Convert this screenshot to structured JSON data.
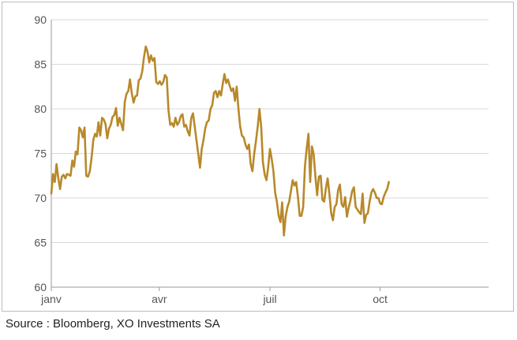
{
  "source_note": "Source : Bloomberg, XO Investments SA",
  "colors": {
    "line": "#B8892A",
    "grid": "#d9d9d9",
    "axis": "#9a9a9a",
    "frame": "#bdbdbd"
  },
  "chart_data": {
    "type": "line",
    "title": "",
    "xlabel": "",
    "ylabel": "",
    "ylim": [
      60,
      90
    ],
    "yticks": [
      60,
      65,
      70,
      75,
      80,
      85,
      90
    ],
    "xlim": [
      0,
      1
    ],
    "xticks": [
      {
        "label": "janv",
        "pos": 0.0
      },
      {
        "label": "avr",
        "pos": 0.247
      },
      {
        "label": "juil",
        "pos": 0.5
      },
      {
        "label": "oct",
        "pos": 0.752
      }
    ],
    "grid": "horizontal",
    "legend": "none",
    "series": [
      {
        "values": [
          [
            0.0,
            70.5
          ],
          [
            0.004,
            72.7
          ],
          [
            0.008,
            71.8
          ],
          [
            0.012,
            73.8
          ],
          [
            0.016,
            72.2
          ],
          [
            0.02,
            71.0
          ],
          [
            0.024,
            72.4
          ],
          [
            0.028,
            72.6
          ],
          [
            0.032,
            72.2
          ],
          [
            0.036,
            72.7
          ],
          [
            0.04,
            72.6
          ],
          [
            0.044,
            72.5
          ],
          [
            0.048,
            74.2
          ],
          [
            0.052,
            73.5
          ],
          [
            0.056,
            75.2
          ],
          [
            0.06,
            74.9
          ],
          [
            0.064,
            77.9
          ],
          [
            0.068,
            77.6
          ],
          [
            0.072,
            76.8
          ],
          [
            0.076,
            77.9
          ],
          [
            0.08,
            72.5
          ],
          [
            0.084,
            72.4
          ],
          [
            0.088,
            73.0
          ],
          [
            0.092,
            74.5
          ],
          [
            0.096,
            76.5
          ],
          [
            0.1,
            77.2
          ],
          [
            0.104,
            76.9
          ],
          [
            0.108,
            78.5
          ],
          [
            0.112,
            77.0
          ],
          [
            0.116,
            79.0
          ],
          [
            0.12,
            78.8
          ],
          [
            0.124,
            78.3
          ],
          [
            0.128,
            76.7
          ],
          [
            0.132,
            77.8
          ],
          [
            0.136,
            78.2
          ],
          [
            0.14,
            79.1
          ],
          [
            0.144,
            79.3
          ],
          [
            0.148,
            80.1
          ],
          [
            0.152,
            78.1
          ],
          [
            0.156,
            79.0
          ],
          [
            0.16,
            78.3
          ],
          [
            0.164,
            77.6
          ],
          [
            0.168,
            80.8
          ],
          [
            0.172,
            81.7
          ],
          [
            0.176,
            82.0
          ],
          [
            0.18,
            83.3
          ],
          [
            0.184,
            81.8
          ],
          [
            0.188,
            80.7
          ],
          [
            0.192,
            81.4
          ],
          [
            0.196,
            81.5
          ],
          [
            0.2,
            83.2
          ],
          [
            0.204,
            83.4
          ],
          [
            0.208,
            84.2
          ],
          [
            0.212,
            85.8
          ],
          [
            0.216,
            87.0
          ],
          [
            0.22,
            86.4
          ],
          [
            0.224,
            85.2
          ],
          [
            0.228,
            86.0
          ],
          [
            0.232,
            85.4
          ],
          [
            0.236,
            85.7
          ],
          [
            0.24,
            83.0
          ],
          [
            0.244,
            82.8
          ],
          [
            0.248,
            83.1
          ],
          [
            0.252,
            82.7
          ],
          [
            0.256,
            83.0
          ],
          [
            0.26,
            83.8
          ],
          [
            0.264,
            83.5
          ],
          [
            0.268,
            79.8
          ],
          [
            0.272,
            78.2
          ],
          [
            0.276,
            78.4
          ],
          [
            0.28,
            78.0
          ],
          [
            0.284,
            79.0
          ],
          [
            0.288,
            78.2
          ],
          [
            0.292,
            78.5
          ],
          [
            0.296,
            79.2
          ],
          [
            0.3,
            79.4
          ],
          [
            0.304,
            78.0
          ],
          [
            0.308,
            78.2
          ],
          [
            0.312,
            77.5
          ],
          [
            0.316,
            77.0
          ],
          [
            0.32,
            79.0
          ],
          [
            0.324,
            79.5
          ],
          [
            0.328,
            78.0
          ],
          [
            0.332,
            76.5
          ],
          [
            0.336,
            75.0
          ],
          [
            0.34,
            73.4
          ],
          [
            0.344,
            75.5
          ],
          [
            0.348,
            76.5
          ],
          [
            0.352,
            77.8
          ],
          [
            0.356,
            78.5
          ],
          [
            0.36,
            78.7
          ],
          [
            0.364,
            80.0
          ],
          [
            0.368,
            80.4
          ],
          [
            0.372,
            81.8
          ],
          [
            0.376,
            82.0
          ],
          [
            0.38,
            81.3
          ],
          [
            0.384,
            82.0
          ],
          [
            0.388,
            81.5
          ],
          [
            0.392,
            82.8
          ],
          [
            0.396,
            83.9
          ],
          [
            0.4,
            82.9
          ],
          [
            0.404,
            83.3
          ],
          [
            0.408,
            82.6
          ],
          [
            0.412,
            82.0
          ],
          [
            0.416,
            82.3
          ],
          [
            0.42,
            80.9
          ],
          [
            0.424,
            82.5
          ],
          [
            0.428,
            80.0
          ],
          [
            0.432,
            78.0
          ],
          [
            0.436,
            77.0
          ],
          [
            0.44,
            76.8
          ],
          [
            0.444,
            76.0
          ],
          [
            0.448,
            75.5
          ],
          [
            0.452,
            76.0
          ],
          [
            0.456,
            73.8
          ],
          [
            0.46,
            73.0
          ],
          [
            0.464,
            75.0
          ],
          [
            0.468,
            76.4
          ],
          [
            0.472,
            78.0
          ],
          [
            0.476,
            80.0
          ],
          [
            0.48,
            78.0
          ],
          [
            0.484,
            74.0
          ],
          [
            0.488,
            72.6
          ],
          [
            0.492,
            72.0
          ],
          [
            0.496,
            73.5
          ],
          [
            0.5,
            75.5
          ],
          [
            0.504,
            74.4
          ],
          [
            0.508,
            73.0
          ],
          [
            0.512,
            70.6
          ],
          [
            0.516,
            69.5
          ],
          [
            0.52,
            68.0
          ],
          [
            0.524,
            67.3
          ],
          [
            0.528,
            69.5
          ],
          [
            0.532,
            65.8
          ],
          [
            0.536,
            67.9
          ],
          [
            0.54,
            69.0
          ],
          [
            0.544,
            69.6
          ],
          [
            0.548,
            70.8
          ],
          [
            0.552,
            72.0
          ],
          [
            0.556,
            71.4
          ],
          [
            0.56,
            71.8
          ],
          [
            0.564,
            70.1
          ],
          [
            0.568,
            68.0
          ],
          [
            0.572,
            68.0
          ],
          [
            0.576,
            69.0
          ],
          [
            0.58,
            73.5
          ],
          [
            0.584,
            75.5
          ],
          [
            0.588,
            77.2
          ],
          [
            0.592,
            71.8
          ],
          [
            0.596,
            75.8
          ],
          [
            0.6,
            74.9
          ],
          [
            0.604,
            72.4
          ],
          [
            0.608,
            70.3
          ],
          [
            0.612,
            72.4
          ],
          [
            0.616,
            72.5
          ],
          [
            0.62,
            69.8
          ],
          [
            0.624,
            69.6
          ],
          [
            0.628,
            71.1
          ],
          [
            0.632,
            72.2
          ],
          [
            0.636,
            70.5
          ],
          [
            0.64,
            68.3
          ],
          [
            0.644,
            67.5
          ],
          [
            0.648,
            69.0
          ],
          [
            0.652,
            69.3
          ],
          [
            0.656,
            70.9
          ],
          [
            0.66,
            71.5
          ],
          [
            0.664,
            69.3
          ],
          [
            0.668,
            69.0
          ],
          [
            0.672,
            70.1
          ],
          [
            0.676,
            67.9
          ],
          [
            0.68,
            68.9
          ],
          [
            0.684,
            69.7
          ],
          [
            0.688,
            70.8
          ],
          [
            0.692,
            71.2
          ],
          [
            0.696,
            69.0
          ],
          [
            0.7,
            68.7
          ],
          [
            0.704,
            68.4
          ],
          [
            0.708,
            68.2
          ],
          [
            0.712,
            70.5
          ],
          [
            0.716,
            67.2
          ],
          [
            0.72,
            68.1
          ],
          [
            0.724,
            68.3
          ],
          [
            0.728,
            69.6
          ],
          [
            0.732,
            70.6
          ],
          [
            0.736,
            71.0
          ],
          [
            0.74,
            70.6
          ],
          [
            0.744,
            70.0
          ],
          [
            0.748,
            70.0
          ],
          [
            0.752,
            69.4
          ],
          [
            0.756,
            69.3
          ],
          [
            0.76,
            70.1
          ],
          [
            0.764,
            70.6
          ],
          [
            0.768,
            71.0
          ],
          [
            0.772,
            71.8
          ]
        ]
      }
    ]
  }
}
